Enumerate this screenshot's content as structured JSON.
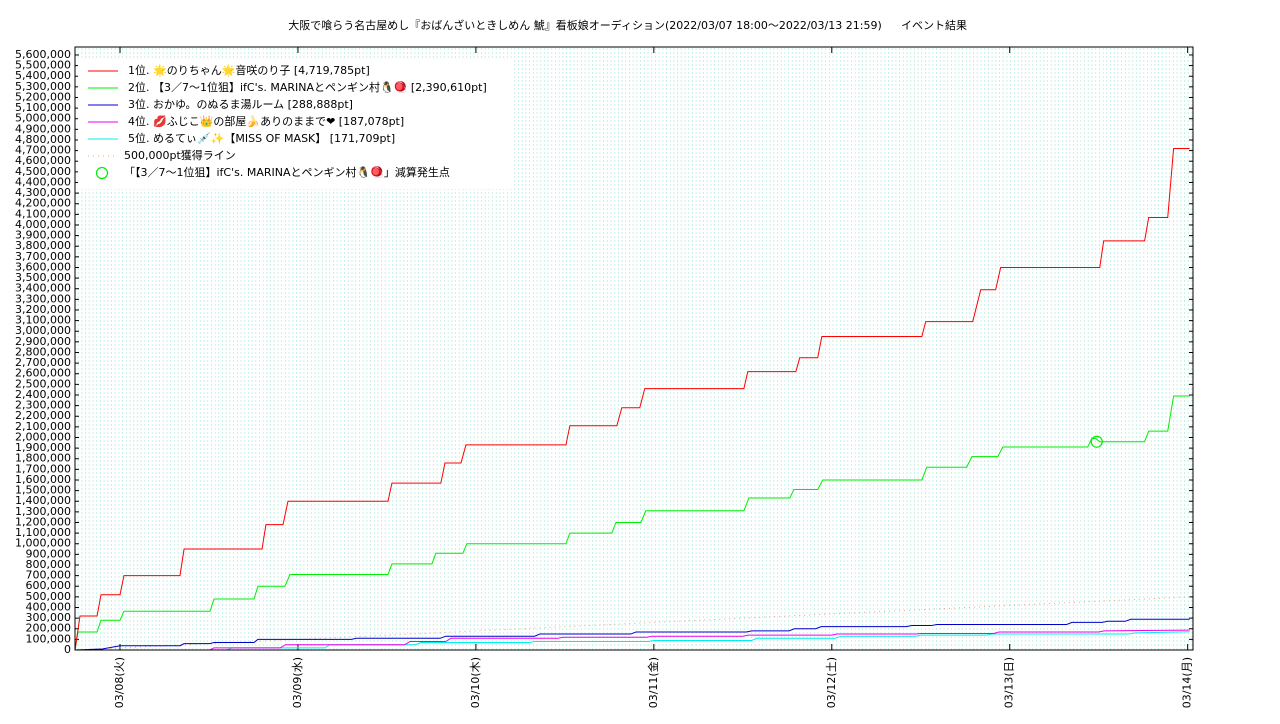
{
  "chart_data": {
    "type": "line",
    "title": "大阪で喰らう名古屋めし『おばんざいときしめん 鯱』看板娘オーディション(2022/03/07 18:00〜2022/03/13 21:59)",
    "subtitle": "イベント結果",
    "xlim": [
      0.747,
      7.03
    ],
    "xticks": [
      {
        "value": 1,
        "label": "03/08(火)"
      },
      {
        "value": 2,
        "label": "03/09(水)"
      },
      {
        "value": 3,
        "label": "03/10(木)"
      },
      {
        "value": 4,
        "label": "03/11(金)"
      },
      {
        "value": 5,
        "label": "03/12(土)"
      },
      {
        "value": 6,
        "label": "03/13(日)"
      },
      {
        "value": 7,
        "label": "03/14(月)"
      }
    ],
    "ylim": [
      0,
      5675000
    ],
    "yticks": [
      0,
      {
        "value": 100000,
        "label": "100,000"
      },
      {
        "value": 200000,
        "label": "200,000"
      },
      {
        "value": 300000,
        "label": "300,000"
      },
      {
        "value": 400000,
        "label": "400,000"
      },
      {
        "value": 500000,
        "label": "500,000"
      },
      {
        "value": 600000,
        "label": "600,000"
      },
      {
        "value": 700000,
        "label": "700,000"
      },
      {
        "value": 800000,
        "label": "800,000"
      },
      {
        "value": 900000,
        "label": "900,000"
      },
      {
        "value": 1000000,
        "label": "1,000,000"
      },
      {
        "value": 1100000,
        "label": "1,100,000"
      },
      {
        "value": 1200000,
        "label": "1,200,000"
      },
      {
        "value": 1300000,
        "label": "1,300,000"
      },
      {
        "value": 1400000,
        "label": "1,400,000"
      },
      {
        "value": 1500000,
        "label": "1,500,000"
      },
      {
        "value": 1600000,
        "label": "1,600,000"
      },
      {
        "value": 1700000,
        "label": "1,700,000"
      },
      {
        "value": 1800000,
        "label": "1,800,000"
      },
      {
        "value": 1900000,
        "label": "1,900,000"
      },
      {
        "value": 2000000,
        "label": "2,000,000"
      },
      {
        "value": 2100000,
        "label": "2,100,000"
      },
      {
        "value": 2200000,
        "label": "2,200,000"
      },
      {
        "value": 2300000,
        "label": "2,300,000"
      },
      {
        "value": 2400000,
        "label": "2,400,000"
      },
      {
        "value": 2500000,
        "label": "2,500,000"
      },
      {
        "value": 2600000,
        "label": "2,600,000"
      },
      {
        "value": 2700000,
        "label": "2,700,000"
      },
      {
        "value": 2800000,
        "label": "2,800,000"
      },
      {
        "value": 2900000,
        "label": "2,900,000"
      },
      {
        "value": 3000000,
        "label": "3,000,000"
      },
      {
        "value": 3100000,
        "label": "3,100,000"
      },
      {
        "value": 3200000,
        "label": "3,200,000"
      },
      {
        "value": 3300000,
        "label": "3,300,000"
      },
      {
        "value": 3400000,
        "label": "3,400,000"
      },
      {
        "value": 3500000,
        "label": "3,500,000"
      },
      {
        "value": 3600000,
        "label": "3,600,000"
      },
      {
        "value": 3700000,
        "label": "3,700,000"
      },
      {
        "value": 3800000,
        "label": "3,800,000"
      },
      {
        "value": 3900000,
        "label": "3,900,000"
      },
      {
        "value": 4000000,
        "label": "4,000,000"
      },
      {
        "value": 4100000,
        "label": "4,100,000"
      },
      {
        "value": 4200000,
        "label": "4,200,000"
      },
      {
        "value": 4300000,
        "label": "4,300,000"
      },
      {
        "value": 4400000,
        "label": "4,400,000"
      },
      {
        "value": 4500000,
        "label": "4,500,000"
      },
      {
        "value": 4600000,
        "label": "4,600,000"
      },
      {
        "value": 4700000,
        "label": "4,700,000"
      },
      {
        "value": 4800000,
        "label": "4,800,000"
      },
      {
        "value": 4900000,
        "label": "4,900,000"
      },
      {
        "value": 5000000,
        "label": "5,000,000"
      },
      {
        "value": 5100000,
        "label": "5,100,000"
      },
      {
        "value": 5200000,
        "label": "5,200,000"
      },
      {
        "value": 5300000,
        "label": "5,300,000"
      },
      {
        "value": 5400000,
        "label": "5,400,000"
      },
      {
        "value": 5500000,
        "label": "5,500,000"
      },
      {
        "value": 5600000,
        "label": "5,600,000"
      }
    ],
    "grid": true,
    "series": [
      {
        "name": "1位. 🌟のりちゃん🌟音咲のり子 [4,719,785pt]",
        "color": "#ff0000",
        "x": [
          0.747,
          0.775,
          0.871,
          0.893,
          1.0,
          1.022,
          1.337,
          1.36,
          1.798,
          1.82,
          1.916,
          1.944,
          2.506,
          2.528,
          2.803,
          2.826,
          2.916,
          2.944,
          3.506,
          3.528,
          3.792,
          3.82,
          3.921,
          3.949,
          4.506,
          4.528,
          4.798,
          4.82,
          4.921,
          4.944,
          5.506,
          5.528,
          5.792,
          5.837,
          5.921,
          5.949,
          6.506,
          6.528,
          6.758,
          6.781,
          6.888,
          6.921,
          7.011
        ],
        "values": [
          0,
          320000,
          320000,
          520000,
          520000,
          700000,
          700000,
          950000,
          950000,
          1180000,
          1180000,
          1400000,
          1400000,
          1570000,
          1570000,
          1760000,
          1760000,
          1930000,
          1930000,
          2110000,
          2110000,
          2280000,
          2280000,
          2460000,
          2460000,
          2620000,
          2620000,
          2750000,
          2750000,
          2950000,
          2950000,
          3090000,
          3090000,
          3390000,
          3390000,
          3600000,
          3600000,
          3850000,
          3850000,
          4070000,
          4070000,
          4719785,
          4719785
        ]
      },
      {
        "name": "2位. 【3／7〜1位狙】ifC's. MARINAとペンギン村🐧🪀 [2,390,610pt]",
        "color": "#00ee00",
        "x": [
          0.747,
          0.764,
          0.871,
          0.893,
          1.0,
          1.022,
          1.506,
          1.528,
          1.753,
          1.775,
          1.927,
          1.955,
          2.506,
          2.528,
          2.753,
          2.775,
          2.927,
          2.949,
          3.506,
          3.528,
          3.764,
          3.787,
          3.927,
          3.955,
          4.506,
          4.534,
          4.764,
          4.787,
          4.921,
          4.949,
          5.506,
          5.534,
          5.758,
          5.787,
          5.933,
          5.961,
          6.438,
          6.461,
          6.483,
          6.506,
          6.758,
          6.781,
          6.888,
          6.921,
          7.011
        ],
        "values": [
          0,
          170000,
          170000,
          280000,
          280000,
          365000,
          365000,
          480000,
          480000,
          600000,
          600000,
          710000,
          710000,
          810000,
          810000,
          910000,
          910000,
          1000000,
          1000000,
          1100000,
          1100000,
          1200000,
          1200000,
          1310000,
          1310000,
          1430000,
          1430000,
          1510000,
          1510000,
          1600000,
          1600000,
          1720000,
          1720000,
          1820000,
          1820000,
          1910000,
          1910000,
          1990000,
          1990000,
          1960000,
          1960000,
          2060000,
          2060000,
          2390610,
          2390610
        ]
      },
      {
        "name": "3位. おかゆ。のぬるま湯ルーム [288,888pt]",
        "color": "#0000cc",
        "x": [
          0.747,
          0.9,
          1.0,
          1.337,
          1.36,
          1.506,
          1.528,
          1.753,
          1.775,
          2.3,
          2.33,
          2.8,
          2.83,
          3.33,
          3.36,
          3.87,
          3.9,
          4.52,
          4.55,
          4.76,
          4.79,
          4.91,
          4.94,
          5.42,
          5.45,
          5.56,
          5.59,
          6.32,
          6.35,
          6.52,
          6.55,
          6.65,
          6.68,
          7.011
        ],
        "values": [
          0,
          10000,
          40000,
          40000,
          60000,
          60000,
          70000,
          70000,
          100000,
          100000,
          110000,
          110000,
          130000,
          130000,
          150000,
          150000,
          170000,
          170000,
          180000,
          180000,
          200000,
          200000,
          220000,
          220000,
          230000,
          230000,
          240000,
          240000,
          260000,
          260000,
          270000,
          270000,
          288888,
          288888
        ]
      },
      {
        "name": "4位. 💋ふじこ👑の部屋🍌ありのままで❤ [187,078pt]",
        "color": "#ee00ee",
        "x": [
          0.747,
          1.506,
          1.528,
          1.9,
          1.93,
          2.6,
          2.63,
          2.83,
          2.86,
          3.46,
          3.49,
          3.96,
          3.99,
          4.5,
          4.53,
          5.0,
          5.03,
          5.47,
          5.5,
          5.91,
          5.94,
          6.5,
          6.53,
          7.011
        ],
        "values": [
          0,
          0,
          20000,
          20000,
          50000,
          50000,
          80000,
          80000,
          110000,
          110000,
          120000,
          120000,
          130000,
          130000,
          140000,
          140000,
          150000,
          150000,
          155000,
          155000,
          170000,
          170000,
          180000,
          187078
        ]
      },
      {
        "name": "5位. めるてぃ💉✨【MISS OF MASK】 [171,709pt]",
        "color": "#00eeee",
        "x": [
          0.747,
          1.6,
          1.63,
          2.15,
          2.18,
          2.66,
          2.69,
          3.3,
          3.33,
          3.97,
          4.0,
          4.55,
          4.58,
          5.02,
          5.05,
          5.47,
          5.5,
          5.87,
          5.9,
          6.67,
          6.7,
          7.011
        ],
        "values": [
          0,
          0,
          20000,
          20000,
          50000,
          50000,
          70000,
          70000,
          80000,
          80000,
          90000,
          90000,
          110000,
          110000,
          130000,
          130000,
          140000,
          140000,
          150000,
          150000,
          160000,
          171709
        ]
      },
      {
        "name": "500,000pt獲得ライン",
        "color": "#e8a080",
        "dash": "dotted",
        "x": [
          0.747,
          7.011
        ],
        "values": [
          0,
          500000
        ]
      },
      {
        "name": "「【3／7〜1位狙】ifC's. MARINAとペンギン村🐧🪀」減算発生点",
        "color": "#00ee00",
        "marker": "circle",
        "x": [
          6.489
        ],
        "values": [
          1960000
        ]
      }
    ]
  }
}
